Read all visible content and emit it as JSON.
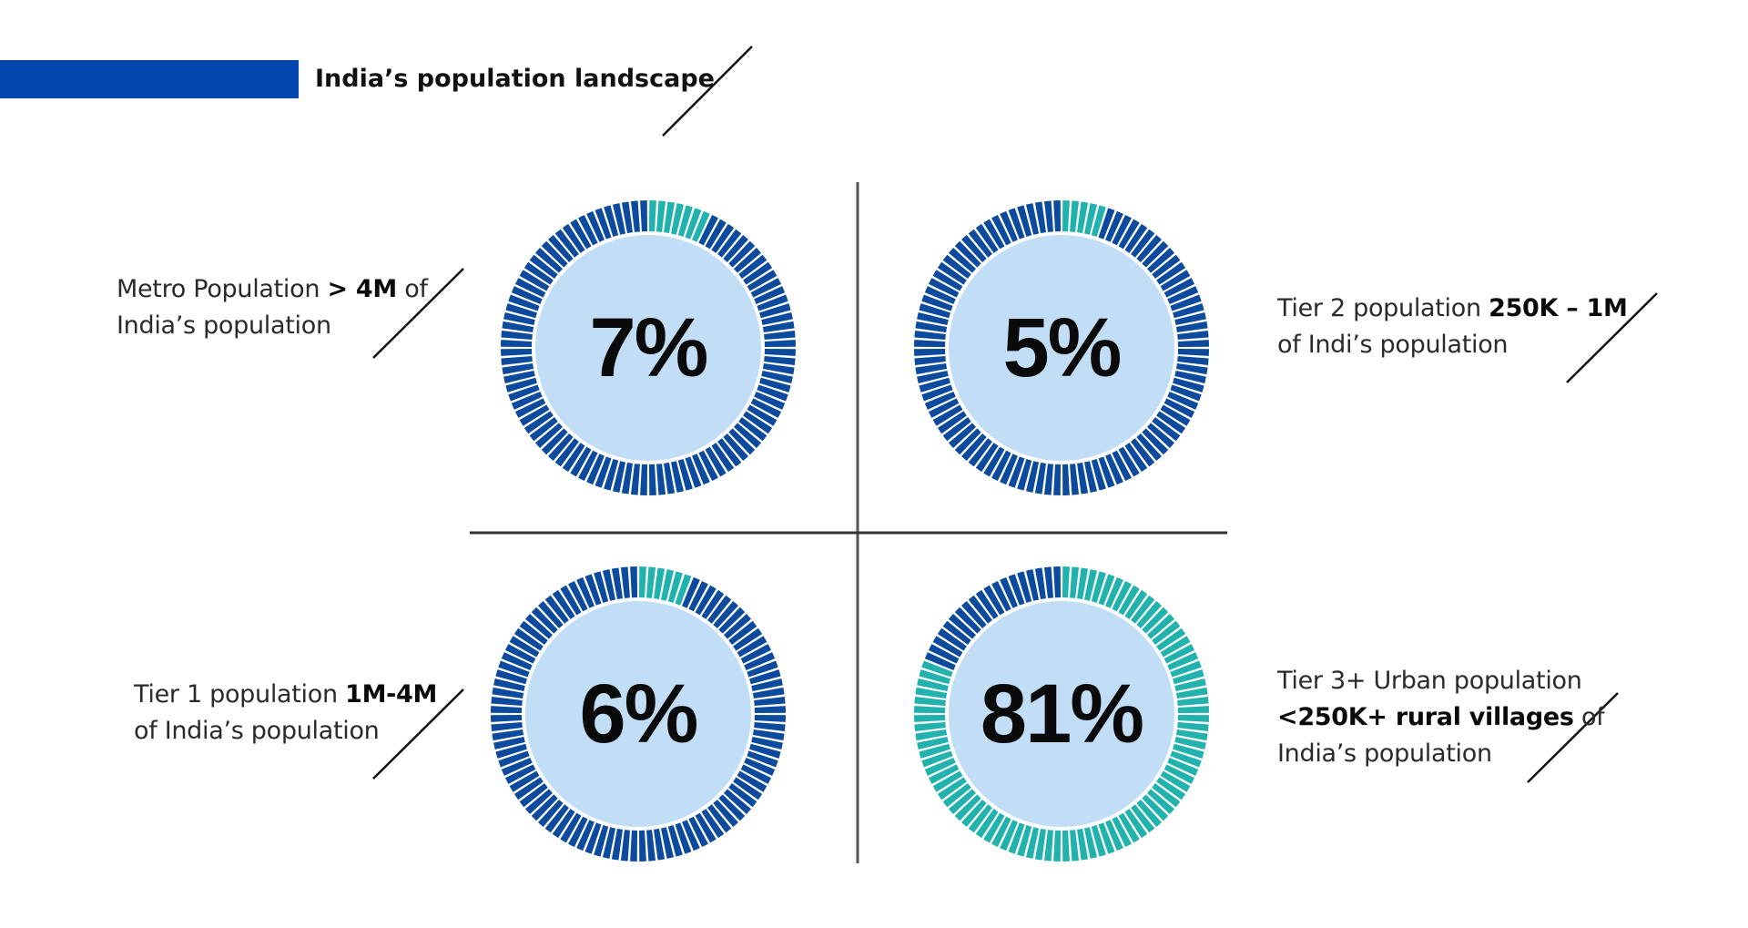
{
  "title": "India’s population landscape",
  "colors": {
    "accent": "#0446b0",
    "dark_segment": "#0b4a9c",
    "teal_segment": "#22b2ae",
    "inner_fill": "#c2def7",
    "divider": "#555555"
  },
  "chart_data": [
    {
      "type": "pie",
      "display": "radial segmented ring",
      "value": 7,
      "label_text": "7%",
      "caption": {
        "pre": "Metro Population ",
        "bold": "> 4M",
        "post": " of India’s population"
      }
    },
    {
      "type": "pie",
      "display": "radial segmented ring",
      "value": 5,
      "label_text": "5%",
      "caption": {
        "pre": "Tier 2 population ",
        "bold": "250K – 1M",
        "post": " of Indi’s population"
      }
    },
    {
      "type": "pie",
      "display": "radial segmented ring",
      "value": 6,
      "label_text": "6%",
      "caption": {
        "pre": "Tier 1 population ",
        "bold": "1M-4M",
        "post": " of India’s population"
      }
    },
    {
      "type": "pie",
      "display": "radial segmented ring",
      "value": 81,
      "label_text": "81%",
      "caption": {
        "pre": "Tier 3+ Urban population ",
        "bold": "<250K+ rural villages",
        "post": " of India’s population"
      }
    }
  ]
}
